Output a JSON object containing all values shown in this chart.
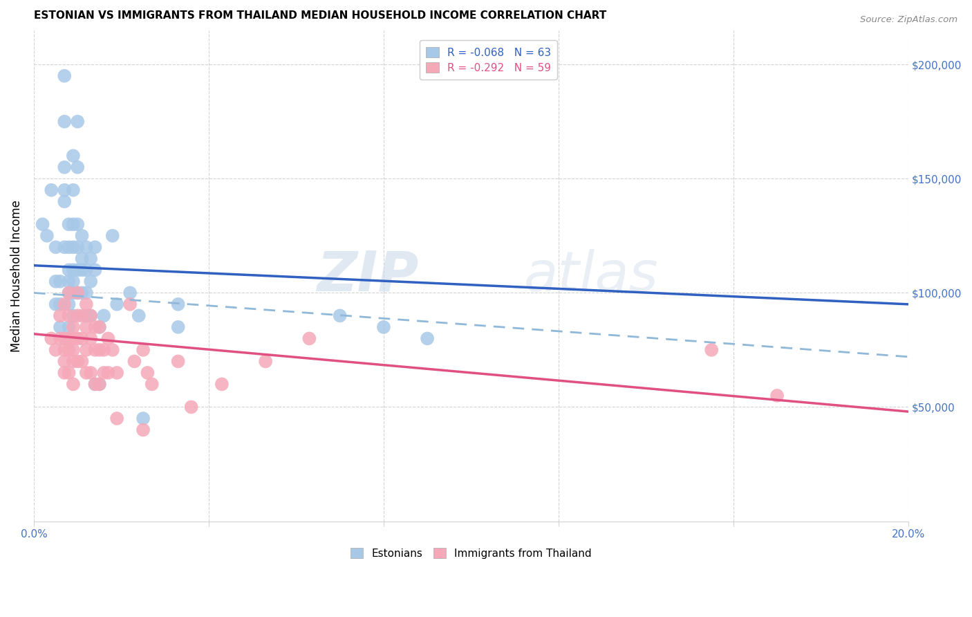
{
  "title": "ESTONIAN VS IMMIGRANTS FROM THAILAND MEDIAN HOUSEHOLD INCOME CORRELATION CHART",
  "source": "Source: ZipAtlas.com",
  "ylabel": "Median Household Income",
  "ytick_values": [
    50000,
    100000,
    150000,
    200000
  ],
  "ytick_labels_right": [
    "$50,000",
    "$100,000",
    "$150,000",
    "$200,000"
  ],
  "ylim": [
    0,
    215000
  ],
  "xlim": [
    0.0,
    0.2
  ],
  "legend_label1": "R = -0.068   N = 63",
  "legend_label2": "R = -0.292   N = 59",
  "legend_bottom1": "Estonians",
  "legend_bottom2": "Immigrants from Thailand",
  "color_blue": "#A8C8E8",
  "color_pink": "#F5A8B8",
  "color_blue_line": "#3060C0",
  "color_pink_line": "#E05080",
  "color_dashed": "#A8C8E8",
  "watermark_zip": "ZIP",
  "watermark_atlas": "atlas",
  "blue_scatter_x": [
    0.002,
    0.003,
    0.004,
    0.005,
    0.005,
    0.005,
    0.006,
    0.006,
    0.006,
    0.007,
    0.007,
    0.007,
    0.007,
    0.007,
    0.007,
    0.008,
    0.008,
    0.008,
    0.008,
    0.008,
    0.008,
    0.008,
    0.009,
    0.009,
    0.009,
    0.009,
    0.009,
    0.009,
    0.009,
    0.009,
    0.01,
    0.01,
    0.01,
    0.01,
    0.01,
    0.01,
    0.011,
    0.011,
    0.011,
    0.011,
    0.012,
    0.012,
    0.012,
    0.012,
    0.013,
    0.013,
    0.013,
    0.014,
    0.014,
    0.014,
    0.015,
    0.015,
    0.016,
    0.018,
    0.019,
    0.022,
    0.024,
    0.025,
    0.033,
    0.033,
    0.07,
    0.08,
    0.09
  ],
  "blue_scatter_y": [
    130000,
    125000,
    145000,
    120000,
    105000,
    95000,
    105000,
    95000,
    85000,
    195000,
    175000,
    155000,
    145000,
    140000,
    120000,
    130000,
    120000,
    110000,
    105000,
    100000,
    95000,
    85000,
    160000,
    145000,
    130000,
    120000,
    110000,
    105000,
    100000,
    90000,
    175000,
    155000,
    130000,
    120000,
    110000,
    100000,
    125000,
    115000,
    110000,
    100000,
    120000,
    110000,
    100000,
    90000,
    115000,
    105000,
    90000,
    120000,
    110000,
    60000,
    85000,
    60000,
    90000,
    125000,
    95000,
    100000,
    90000,
    45000,
    95000,
    85000,
    90000,
    85000,
    80000
  ],
  "pink_scatter_x": [
    0.004,
    0.005,
    0.006,
    0.006,
    0.007,
    0.007,
    0.007,
    0.007,
    0.007,
    0.008,
    0.008,
    0.008,
    0.008,
    0.008,
    0.009,
    0.009,
    0.009,
    0.009,
    0.009,
    0.01,
    0.01,
    0.01,
    0.01,
    0.011,
    0.011,
    0.011,
    0.012,
    0.012,
    0.012,
    0.012,
    0.013,
    0.013,
    0.013,
    0.014,
    0.014,
    0.014,
    0.015,
    0.015,
    0.015,
    0.016,
    0.016,
    0.017,
    0.017,
    0.018,
    0.019,
    0.019,
    0.022,
    0.023,
    0.025,
    0.025,
    0.026,
    0.027,
    0.033,
    0.036,
    0.043,
    0.053,
    0.063,
    0.155,
    0.17
  ],
  "pink_scatter_y": [
    80000,
    75000,
    90000,
    80000,
    95000,
    80000,
    75000,
    70000,
    65000,
    100000,
    90000,
    80000,
    75000,
    65000,
    85000,
    80000,
    75000,
    70000,
    60000,
    100000,
    90000,
    80000,
    70000,
    90000,
    80000,
    70000,
    95000,
    85000,
    75000,
    65000,
    90000,
    80000,
    65000,
    85000,
    75000,
    60000,
    85000,
    75000,
    60000,
    75000,
    65000,
    80000,
    65000,
    75000,
    65000,
    45000,
    95000,
    70000,
    75000,
    40000,
    65000,
    60000,
    70000,
    50000,
    60000,
    70000,
    80000,
    75000,
    55000
  ],
  "blue_line_x": [
    0.0,
    0.2
  ],
  "blue_line_y": [
    112000,
    95000
  ],
  "pink_line_x": [
    0.0,
    0.2
  ],
  "pink_line_y": [
    82000,
    48000
  ],
  "dashed_line_x": [
    0.0,
    0.2
  ],
  "dashed_line_y": [
    100000,
    72000
  ],
  "xtick_values": [
    0.0,
    0.04,
    0.08,
    0.12,
    0.16,
    0.2
  ],
  "xtick_labels": [
    "0.0%",
    "",
    "",
    "",
    "",
    "20.0%"
  ]
}
